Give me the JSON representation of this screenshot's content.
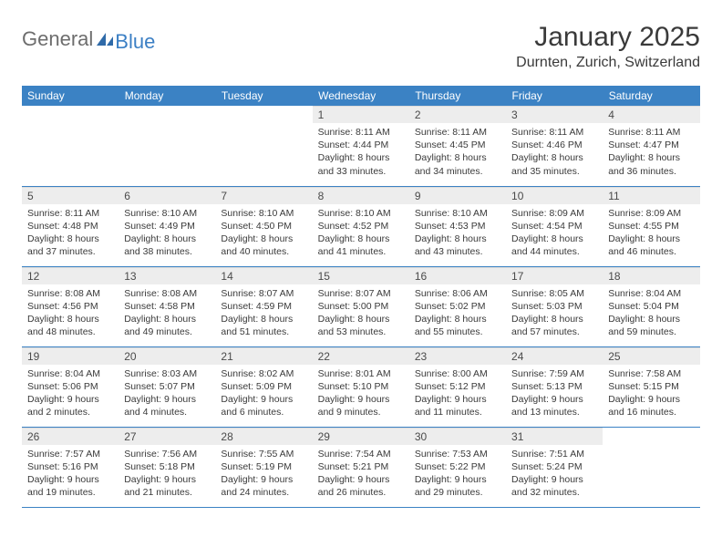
{
  "logo": {
    "text1": "General",
    "text2": "Blue"
  },
  "title": "January 2025",
  "location": "Durnten, Zurich, Switzerland",
  "colors": {
    "header_bg": "#3b82c4",
    "header_text": "#ffffff",
    "daynum_bg": "#ededed",
    "border": "#3b82c4",
    "logo_gray": "#6d6d6d",
    "logo_blue": "#3b7fc4",
    "text": "#3a3a3a"
  },
  "weekdays": [
    "Sunday",
    "Monday",
    "Tuesday",
    "Wednesday",
    "Thursday",
    "Friday",
    "Saturday"
  ],
  "weeks": [
    [
      null,
      null,
      null,
      {
        "n": "1",
        "sr": "8:11 AM",
        "ss": "4:44 PM",
        "dl": "8 hours and 33 minutes."
      },
      {
        "n": "2",
        "sr": "8:11 AM",
        "ss": "4:45 PM",
        "dl": "8 hours and 34 minutes."
      },
      {
        "n": "3",
        "sr": "8:11 AM",
        "ss": "4:46 PM",
        "dl": "8 hours and 35 minutes."
      },
      {
        "n": "4",
        "sr": "8:11 AM",
        "ss": "4:47 PM",
        "dl": "8 hours and 36 minutes."
      }
    ],
    [
      {
        "n": "5",
        "sr": "8:11 AM",
        "ss": "4:48 PM",
        "dl": "8 hours and 37 minutes."
      },
      {
        "n": "6",
        "sr": "8:10 AM",
        "ss": "4:49 PM",
        "dl": "8 hours and 38 minutes."
      },
      {
        "n": "7",
        "sr": "8:10 AM",
        "ss": "4:50 PM",
        "dl": "8 hours and 40 minutes."
      },
      {
        "n": "8",
        "sr": "8:10 AM",
        "ss": "4:52 PM",
        "dl": "8 hours and 41 minutes."
      },
      {
        "n": "9",
        "sr": "8:10 AM",
        "ss": "4:53 PM",
        "dl": "8 hours and 43 minutes."
      },
      {
        "n": "10",
        "sr": "8:09 AM",
        "ss": "4:54 PM",
        "dl": "8 hours and 44 minutes."
      },
      {
        "n": "11",
        "sr": "8:09 AM",
        "ss": "4:55 PM",
        "dl": "8 hours and 46 minutes."
      }
    ],
    [
      {
        "n": "12",
        "sr": "8:08 AM",
        "ss": "4:56 PM",
        "dl": "8 hours and 48 minutes."
      },
      {
        "n": "13",
        "sr": "8:08 AM",
        "ss": "4:58 PM",
        "dl": "8 hours and 49 minutes."
      },
      {
        "n": "14",
        "sr": "8:07 AM",
        "ss": "4:59 PM",
        "dl": "8 hours and 51 minutes."
      },
      {
        "n": "15",
        "sr": "8:07 AM",
        "ss": "5:00 PM",
        "dl": "8 hours and 53 minutes."
      },
      {
        "n": "16",
        "sr": "8:06 AM",
        "ss": "5:02 PM",
        "dl": "8 hours and 55 minutes."
      },
      {
        "n": "17",
        "sr": "8:05 AM",
        "ss": "5:03 PM",
        "dl": "8 hours and 57 minutes."
      },
      {
        "n": "18",
        "sr": "8:04 AM",
        "ss": "5:04 PM",
        "dl": "8 hours and 59 minutes."
      }
    ],
    [
      {
        "n": "19",
        "sr": "8:04 AM",
        "ss": "5:06 PM",
        "dl": "9 hours and 2 minutes."
      },
      {
        "n": "20",
        "sr": "8:03 AM",
        "ss": "5:07 PM",
        "dl": "9 hours and 4 minutes."
      },
      {
        "n": "21",
        "sr": "8:02 AM",
        "ss": "5:09 PM",
        "dl": "9 hours and 6 minutes."
      },
      {
        "n": "22",
        "sr": "8:01 AM",
        "ss": "5:10 PM",
        "dl": "9 hours and 9 minutes."
      },
      {
        "n": "23",
        "sr": "8:00 AM",
        "ss": "5:12 PM",
        "dl": "9 hours and 11 minutes."
      },
      {
        "n": "24",
        "sr": "7:59 AM",
        "ss": "5:13 PM",
        "dl": "9 hours and 13 minutes."
      },
      {
        "n": "25",
        "sr": "7:58 AM",
        "ss": "5:15 PM",
        "dl": "9 hours and 16 minutes."
      }
    ],
    [
      {
        "n": "26",
        "sr": "7:57 AM",
        "ss": "5:16 PM",
        "dl": "9 hours and 19 minutes."
      },
      {
        "n": "27",
        "sr": "7:56 AM",
        "ss": "5:18 PM",
        "dl": "9 hours and 21 minutes."
      },
      {
        "n": "28",
        "sr": "7:55 AM",
        "ss": "5:19 PM",
        "dl": "9 hours and 24 minutes."
      },
      {
        "n": "29",
        "sr": "7:54 AM",
        "ss": "5:21 PM",
        "dl": "9 hours and 26 minutes."
      },
      {
        "n": "30",
        "sr": "7:53 AM",
        "ss": "5:22 PM",
        "dl": "9 hours and 29 minutes."
      },
      {
        "n": "31",
        "sr": "7:51 AM",
        "ss": "5:24 PM",
        "dl": "9 hours and 32 minutes."
      },
      null
    ]
  ],
  "labels": {
    "sunrise": "Sunrise:",
    "sunset": "Sunset:",
    "daylight": "Daylight:"
  }
}
